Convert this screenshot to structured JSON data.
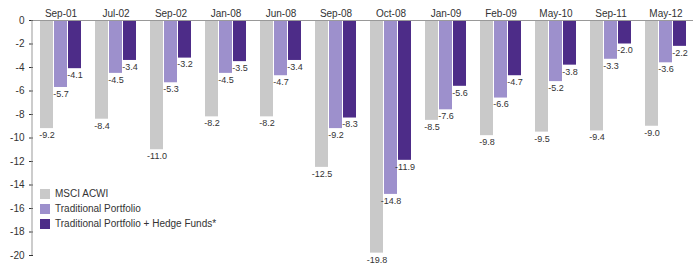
{
  "chart_data": {
    "type": "bar",
    "categories": [
      "Sep-01",
      "Jul-02",
      "Sep-02",
      "Jan-08",
      "Jun-08",
      "Sep-08",
      "Oct-08",
      "Jan-09",
      "Feb-09",
      "May-10",
      "Sep-11",
      "May-12"
    ],
    "series": [
      {
        "name": "MSCI ACWI",
        "color": "#c9c9c9",
        "values": [
          -9.2,
          -8.4,
          -11.0,
          -8.2,
          -8.2,
          -12.5,
          -19.8,
          -8.5,
          -9.8,
          -9.5,
          -9.4,
          -9.0
        ],
        "value_labels": [
          "-9.2",
          "-8.4",
          "-11.0",
          "-8.2",
          "-8.2",
          "-12.5",
          "-19.8",
          "-8.5",
          "-9.8",
          "-9.5",
          "-9.4",
          "-9.0"
        ]
      },
      {
        "name": "Traditional Portfolio",
        "color": "#9d90cc",
        "values": [
          -5.7,
          -4.5,
          -5.3,
          -4.5,
          -4.7,
          -9.2,
          -14.8,
          -7.6,
          -6.6,
          -5.2,
          -3.3,
          -3.6
        ],
        "value_labels": [
          "-5.7",
          "-4.5",
          "-5.3",
          "-4.5",
          "-4.7",
          "-9.2",
          "-14.8",
          "-7.6",
          "-6.6",
          "-5.2",
          "-3.3",
          "-3.6"
        ]
      },
      {
        "name": "Traditional Portfolio + Hedge Funds*",
        "color": "#4d2c88",
        "values": [
          -4.1,
          -3.4,
          -3.2,
          -3.5,
          -3.4,
          -8.3,
          -11.9,
          -5.6,
          -4.7,
          -3.8,
          -2.0,
          -2.2
        ],
        "value_labels": [
          "-4.1",
          "-3.4",
          "-3.2",
          "-3.5",
          "-3.4",
          "-8.3",
          "-11.9",
          "-5.6",
          "-4.7",
          "-3.8",
          "-2.0",
          "-2.2"
        ]
      }
    ],
    "ylim": [
      -20,
      0
    ],
    "yticks": [
      -20,
      -18,
      -16,
      -14,
      -12,
      -10,
      -8,
      -6,
      -4,
      -2,
      0
    ],
    "grid": false,
    "legend": "lower left",
    "data_labels": true
  }
}
